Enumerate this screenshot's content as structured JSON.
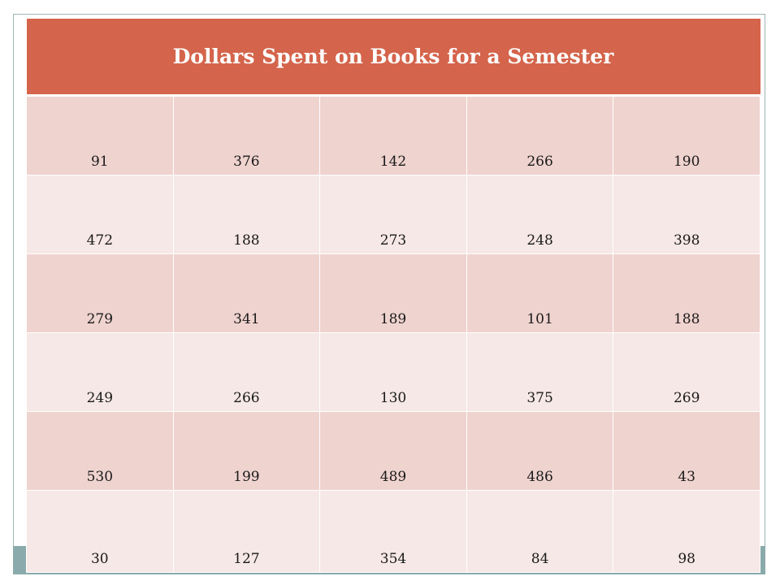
{
  "table": {
    "title": "Dollars Spent on Books for a Semester",
    "rows": [
      [
        "91",
        "376",
        "142",
        "266",
        "190"
      ],
      [
        "472",
        "188",
        "273",
        "248",
        "398"
      ],
      [
        "279",
        "341",
        "189",
        "101",
        "188"
      ],
      [
        "249",
        "266",
        "130",
        "375",
        "269"
      ],
      [
        "530",
        "199",
        "489",
        "486",
        "43"
      ],
      [
        "30",
        "127",
        "354",
        "84",
        "98"
      ]
    ]
  },
  "colors": {
    "header_bg": "#d4644b",
    "row_odd_bg": "#efd3cf",
    "row_even_bg": "#f6e8e6",
    "accent_bar": "#8aaaab"
  }
}
